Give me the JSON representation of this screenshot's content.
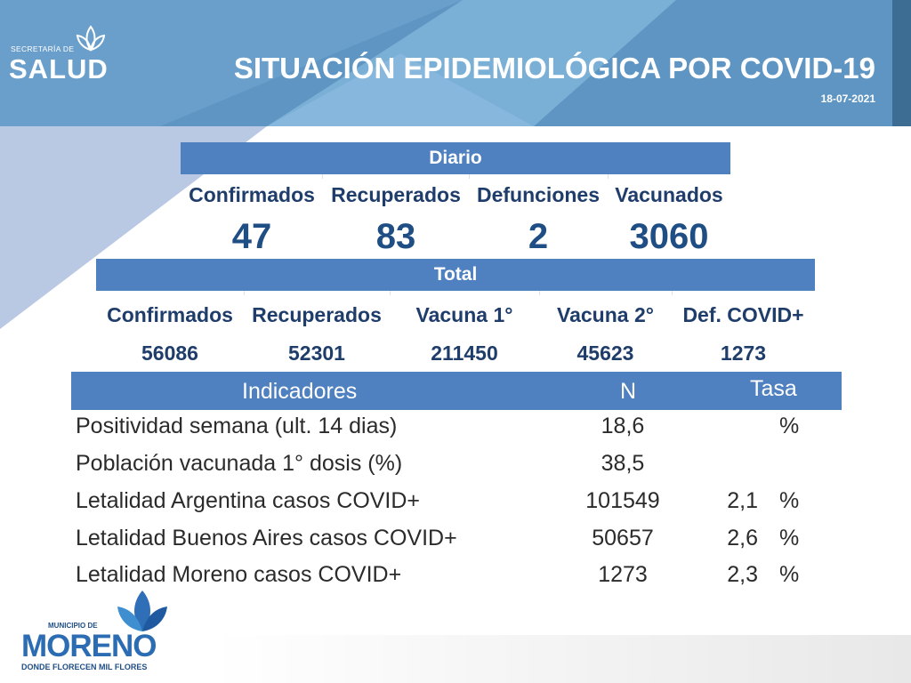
{
  "header": {
    "logo_top": "SECRETARÍA DE",
    "logo_name": "SALUD",
    "title": "SITUACIÓN EPIDEMIOLÓGICA POR COVID-19",
    "date": "18-07-2021"
  },
  "diario": {
    "title": "Diario",
    "columns": [
      "Confirmados",
      "Recuperados",
      "Defunciones",
      "Vacunados"
    ],
    "values": [
      "47",
      "83",
      "2",
      "3060"
    ]
  },
  "total": {
    "title": "Total",
    "columns": [
      "Confirmados",
      "Recuperados",
      "Vacuna 1°",
      "Vacuna 2°",
      "Def. COVID+"
    ],
    "values": [
      "56086",
      "52301",
      "211450",
      "45623",
      "1273"
    ]
  },
  "indicadores": {
    "headers": [
      "Indicadores",
      "N",
      "Tasa"
    ],
    "rows": [
      {
        "label": "Positividad semana (ult. 14 dias)",
        "n": "18,6",
        "tasa": "",
        "unit": "%"
      },
      {
        "label": "Población vacunada 1° dosis (%)",
        "n": "38,5",
        "tasa": "",
        "unit": ""
      },
      {
        "label": "Letalidad Argentina casos COVID+",
        "n": "101549",
        "tasa": "2,1",
        "unit": "%"
      },
      {
        "label": "Letalidad Buenos Aires casos COVID+",
        "n": "50657",
        "tasa": "2,6",
        "unit": "%"
      },
      {
        "label": "Letalidad Moreno casos COVID+",
        "n": "1273",
        "tasa": "2,3",
        "unit": "%"
      }
    ]
  },
  "footer": {
    "logo_top": "MUNICIPIO DE",
    "logo_name": "MORENO",
    "logo_tagline": "DONDE FLORECEN MIL FLORES"
  },
  "colors": {
    "header_blue": "#5b8fc0",
    "bar_blue": "#4f80bf",
    "value_navy": "#1f4e85"
  }
}
